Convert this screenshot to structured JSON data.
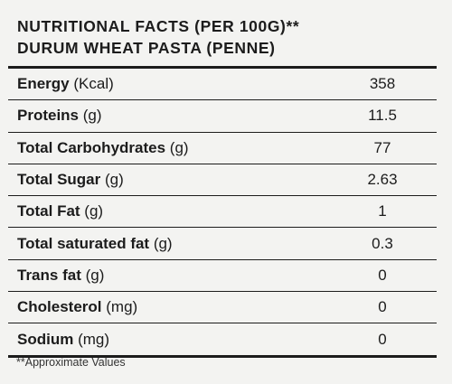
{
  "header": {
    "line1": "NUTRITIONAL FACTS (PER 100G)**",
    "line2": "DURUM WHEAT PASTA (PENNE)"
  },
  "rows": [
    {
      "name": "Energy",
      "unit": " (Kcal)",
      "value": "358"
    },
    {
      "name": "Proteins",
      "unit": " (g)",
      "value": "11.5"
    },
    {
      "name": "Total Carbohydrates",
      "unit": " (g)",
      "value": "77"
    },
    {
      "name": "Total Sugar",
      "unit": " (g)",
      "value": "2.63"
    },
    {
      "name": "Total Fat",
      "unit": " (g)",
      "value": "1"
    },
    {
      "name": "Total saturated fat",
      "unit": " (g)",
      "value": "0.3"
    },
    {
      "name": "Trans fat",
      "unit": " (g)",
      "value": "0"
    },
    {
      "name": "Cholesterol",
      "unit": " (mg)",
      "value": "0"
    },
    {
      "name": "Sodium",
      "unit": " (mg)",
      "value": "0"
    }
  ],
  "footnote": "**Approximate Values"
}
